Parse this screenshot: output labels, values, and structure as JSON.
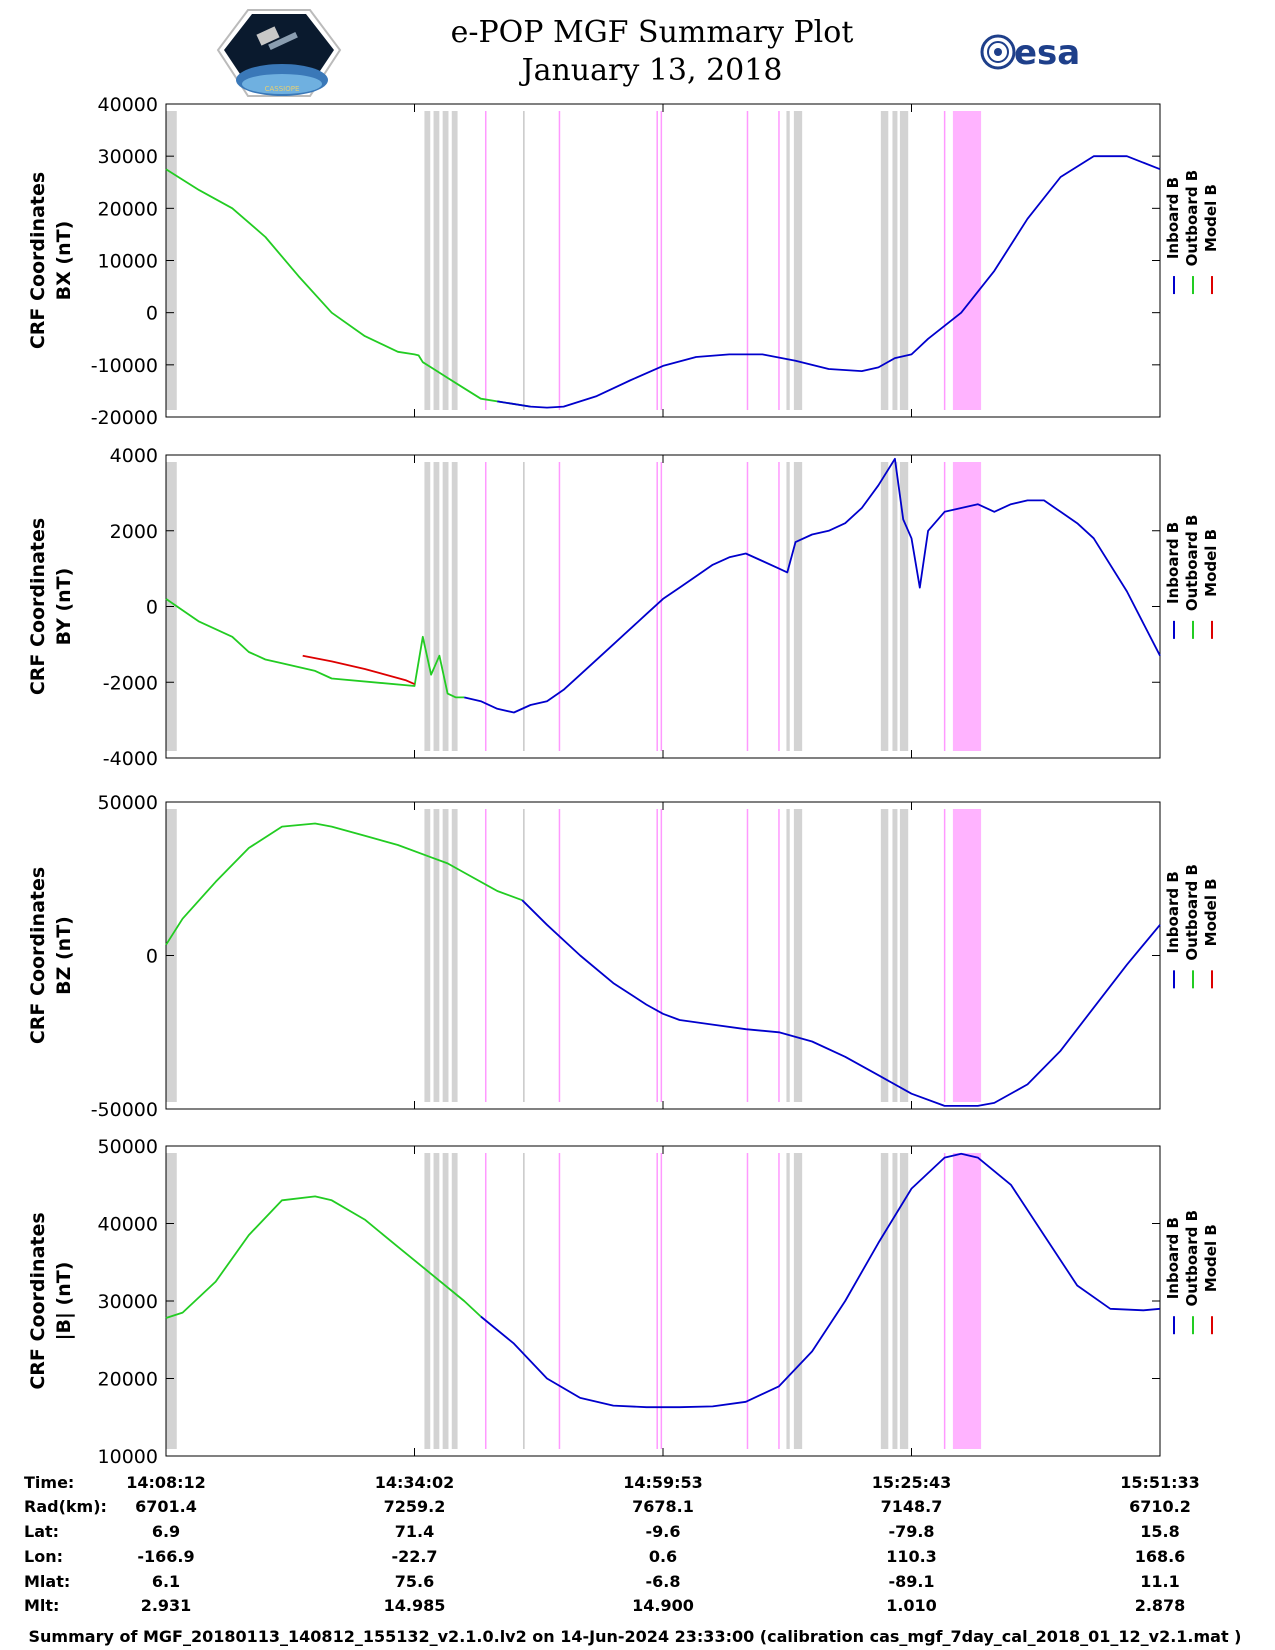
{
  "header": {
    "title_line1": "e-POP MGF Summary Plot",
    "title_line2": "January 13, 2018",
    "esa_logo_text": "esa",
    "left_logo_text": "CASSIOPE"
  },
  "legend": {
    "items": [
      {
        "label": "Inboard B",
        "color": "#0000cc"
      },
      {
        "label": "Outboard B",
        "color": "#22cc22"
      },
      {
        "label": "Model B",
        "color": "#dd0000"
      }
    ]
  },
  "chart_data": [
    {
      "type": "line",
      "ylabel_line1": "CRF Coordinates",
      "ylabel_line2": "BX (nT)",
      "ylim": [
        -20000,
        40000
      ],
      "yticks": [
        -20000,
        -10000,
        0,
        10000,
        20000,
        30000,
        40000
      ],
      "ytick_labels": [
        "-20000",
        "-10000",
        "0",
        "10000",
        "20000",
        "30000",
        "40000"
      ],
      "series": [
        {
          "name": "Outboard B",
          "x": [
            0,
            4,
            8,
            12,
            16,
            20,
            24,
            28,
            30,
            30.5,
            31,
            32,
            34,
            36,
            38,
            40,
            44
          ],
          "values": [
            27500,
            23500,
            20000,
            14500,
            7000,
            0,
            -4500,
            -7500,
            -8000,
            -8200,
            -9500,
            -10500,
            -12500,
            -14500,
            -16500,
            -17000,
            -18000
          ]
        },
        {
          "name": "Inboard B",
          "x": [
            40,
            44,
            46,
            48,
            52,
            56,
            60,
            64,
            68,
            72,
            76,
            80,
            84,
            86,
            88,
            90,
            91,
            92,
            96,
            100,
            104,
            108,
            112,
            116,
            120
          ],
          "values": [
            -17000,
            -18000,
            -18200,
            -18000,
            -16000,
            -13000,
            -10200,
            -8500,
            -8000,
            -8000,
            -9200,
            -10800,
            -11200,
            -10500,
            -8700,
            -8000,
            -6500,
            -5000,
            0,
            8000,
            18000,
            26000,
            30000,
            30000,
            27500
          ]
        }
      ]
    },
    {
      "type": "line",
      "ylabel_line1": "CRF Coordinates",
      "ylabel_line2": "BY (nT)",
      "ylim": [
        -4000,
        4000
      ],
      "yticks": [
        -4000,
        -2000,
        0,
        2000,
        4000
      ],
      "ytick_labels": [
        "-4000",
        "-2000",
        "0",
        "2000",
        "4000"
      ],
      "series": [
        {
          "name": "Outboard B",
          "x": [
            0,
            4,
            8,
            10,
            11,
            12,
            14,
            18,
            20,
            30,
            31,
            32,
            33,
            34,
            35,
            36
          ],
          "values": [
            200,
            -400,
            -800,
            -1200,
            -1300,
            -1400,
            -1500,
            -1700,
            -1900,
            -2100,
            -800,
            -1800,
            -1300,
            -2300,
            -2400,
            -2400
          ]
        },
        {
          "name": "Model B",
          "x": [
            16.5,
            20,
            24,
            29,
            30
          ],
          "values": [
            -1300,
            -1450,
            -1650,
            -1950,
            -2050
          ]
        },
        {
          "name": "Inboard B",
          "x": [
            36,
            38,
            40,
            42,
            44,
            46,
            48,
            50,
            54,
            58,
            60,
            62,
            64,
            66,
            68,
            70,
            72,
            74,
            75,
            76,
            78,
            80,
            82,
            84,
            86,
            88,
            89,
            90,
            91,
            92,
            94,
            96,
            98,
            100,
            102,
            104,
            106,
            108,
            110,
            112,
            116,
            120
          ],
          "values": [
            -2400,
            -2500,
            -2700,
            -2800,
            -2600,
            -2500,
            -2200,
            -1800,
            -1000,
            -200,
            200,
            500,
            800,
            1100,
            1300,
            1400,
            1200,
            1000,
            900,
            1700,
            1900,
            2000,
            2200,
            2600,
            3200,
            3900,
            2300,
            1800,
            500,
            2000,
            2500,
            2600,
            2700,
            2500,
            2700,
            2800,
            2800,
            2500,
            2200,
            1800,
            400,
            -1300
          ]
        }
      ]
    },
    {
      "type": "line",
      "ylabel_line1": "CRF Coordinates",
      "ylabel_line2": "BZ (nT)",
      "ylim": [
        -50000,
        50000
      ],
      "yticks": [
        -50000,
        0,
        50000
      ],
      "ytick_labels": [
        "-50000",
        "0",
        "50000"
      ],
      "series": [
        {
          "name": "Outboard B",
          "x": [
            0,
            2,
            6,
            10,
            14,
            18,
            20,
            24,
            28,
            32,
            34,
            36,
            40,
            43
          ],
          "values": [
            3500,
            12000,
            24000,
            35000,
            42000,
            43000,
            42000,
            39000,
            36000,
            32000,
            30000,
            27000,
            21000,
            18000
          ]
        },
        {
          "name": "Inboard B",
          "x": [
            43,
            46,
            50,
            54,
            58,
            60,
            62,
            66,
            70,
            74,
            78,
            82,
            86,
            90,
            94,
            98,
            100,
            104,
            108,
            112,
            116,
            120
          ],
          "values": [
            18000,
            10000,
            0,
            -9000,
            -16000,
            -19000,
            -21000,
            -22500,
            -24000,
            -25000,
            -28000,
            -33000,
            -39000,
            -45000,
            -49000,
            -49000,
            -48000,
            -42000,
            -31000,
            -17000,
            -3000,
            10000
          ]
        }
      ]
    },
    {
      "type": "line",
      "ylabel_line1": "CRF Coordinates",
      "ylabel_line2": "|B| (nT)",
      "ylim": [
        10000,
        50000
      ],
      "yticks": [
        10000,
        20000,
        30000,
        40000,
        50000
      ],
      "ytick_labels": [
        "10000",
        "20000",
        "30000",
        "40000",
        "50000"
      ],
      "series": [
        {
          "name": "Outboard B",
          "x": [
            0,
            2,
            6,
            10,
            14,
            18,
            20,
            24,
            28,
            32,
            36,
            38
          ],
          "values": [
            27800,
            28500,
            32500,
            38500,
            43000,
            43500,
            43000,
            40500,
            37000,
            33500,
            30000,
            28000
          ]
        },
        {
          "name": "Inboard B",
          "x": [
            38,
            42,
            46,
            50,
            54,
            58,
            62,
            66,
            70,
            74,
            78,
            82,
            86,
            90,
            94,
            96,
            98,
            102,
            106,
            110,
            114,
            118,
            120
          ],
          "values": [
            28000,
            24500,
            20000,
            17500,
            16500,
            16300,
            16300,
            16400,
            17000,
            19000,
            23500,
            30000,
            37500,
            44500,
            48500,
            49000,
            48500,
            45000,
            38500,
            32000,
            29000,
            28800,
            29000
          ]
        }
      ]
    }
  ],
  "shading": {
    "gray_bands": [
      [
        0,
        1.3
      ],
      [
        31.2,
        31.9
      ],
      [
        32.3,
        33
      ],
      [
        33.4,
        34.1
      ],
      [
        34.5,
        35.2
      ],
      [
        74.9,
        75.3
      ],
      [
        75.8,
        76.8
      ],
      [
        86.3,
        87.2
      ],
      [
        87.7,
        88.3
      ],
      [
        88.6,
        89.6
      ]
    ],
    "gray_lines": [
      43.2
    ],
    "pink_lines": [
      38.6,
      47.5,
      59.3,
      59.8,
      70.2,
      74.0,
      94.0
    ],
    "pink_bands": [
      [
        95.0,
        98.4
      ]
    ]
  },
  "time_axis": {
    "xlim": [
      0,
      120
    ],
    "label_positions": [
      0,
      30,
      60,
      90,
      120
    ]
  },
  "info_table": {
    "row_labels": [
      "Time:",
      "Rad(km):",
      "Lat:",
      "Lon:",
      "Mlat:",
      "Mlt:"
    ],
    "columns": [
      [
        "14:08:12",
        "6701.4",
        "6.9",
        "-166.9",
        "6.1",
        "2.931"
      ],
      [
        "14:34:02",
        "7259.2",
        "71.4",
        "-22.7",
        "75.6",
        "14.985"
      ],
      [
        "14:59:53",
        "7678.1",
        "-9.6",
        "0.6",
        "-6.8",
        "14.900"
      ],
      [
        "15:25:43",
        "7148.7",
        "-79.8",
        "110.3",
        "-89.1",
        "1.010"
      ],
      [
        "15:51:33",
        "6710.2",
        "15.8",
        "168.6",
        "11.1",
        "2.878"
      ]
    ]
  },
  "footer": {
    "text": "Summary of MGF_20180113_140812_155132_v2.1.0.lv2 on 14-Jun-2024 23:33:00 (calibration cas_mgf_7day_cal_2018_01_12_v2.1.mat )"
  }
}
